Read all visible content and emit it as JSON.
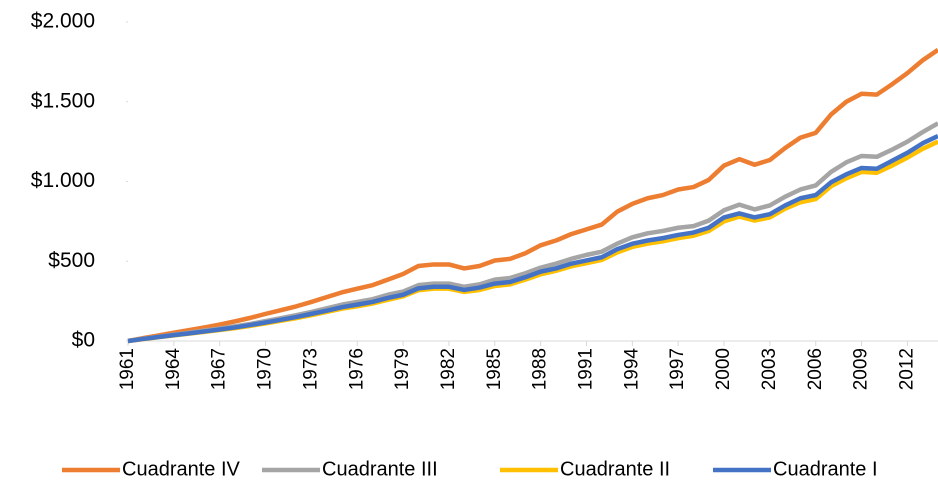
{
  "chart_data": {
    "type": "line",
    "x": [
      1961,
      1962,
      1963,
      1964,
      1965,
      1966,
      1967,
      1968,
      1969,
      1970,
      1971,
      1972,
      1973,
      1974,
      1975,
      1976,
      1977,
      1978,
      1979,
      1980,
      1981,
      1982,
      1983,
      1984,
      1985,
      1986,
      1987,
      1988,
      1989,
      1990,
      1991,
      1992,
      1993,
      1994,
      1995,
      1996,
      1997,
      1998,
      1999,
      2000,
      2001,
      2002,
      2003,
      2004,
      2005,
      2006,
      2007,
      2008,
      2009,
      2010,
      2011,
      2012,
      2013,
      2014
    ],
    "xlim": [
      1961,
      2014
    ],
    "xticks": [
      1961,
      1964,
      1967,
      1970,
      1973,
      1976,
      1979,
      1982,
      1985,
      1988,
      1991,
      1994,
      1997,
      2000,
      2003,
      2006,
      2009,
      2012
    ],
    "ylim": [
      0,
      2000
    ],
    "yticks": [
      {
        "value": 0,
        "label": "$0"
      },
      {
        "value": 500,
        "label": "$500"
      },
      {
        "value": 1000,
        "label": "$1.000"
      },
      {
        "value": 1500,
        "label": "$1.500"
      },
      {
        "value": 2000,
        "label": "$2.000"
      }
    ],
    "legend": "bottom",
    "series": [
      {
        "name": "Cuadrante IV",
        "color": "#ed7d31",
        "values": [
          0,
          18,
          35,
          52,
          68,
          85,
          103,
          123,
          145,
          170,
          193,
          217,
          245,
          275,
          305,
          328,
          350,
          385,
          420,
          470,
          480,
          480,
          455,
          470,
          505,
          515,
          550,
          600,
          630,
          670,
          700,
          730,
          810,
          860,
          895,
          915,
          950,
          965,
          1010,
          1100,
          1140,
          1105,
          1135,
          1210,
          1275,
          1305,
          1420,
          1500,
          1550,
          1545,
          1610,
          1680,
          1760,
          1825
        ]
      },
      {
        "name": "Cuadrante III",
        "color": "#a5a5a5",
        "values": [
          0,
          14,
          27,
          40,
          52,
          65,
          78,
          92,
          107,
          125,
          143,
          162,
          182,
          205,
          228,
          245,
          262,
          290,
          310,
          350,
          360,
          360,
          340,
          355,
          385,
          395,
          425,
          460,
          485,
          515,
          540,
          560,
          610,
          650,
          675,
          690,
          710,
          720,
          755,
          820,
          855,
          825,
          850,
          905,
          950,
          975,
          1060,
          1120,
          1160,
          1155,
          1200,
          1250,
          1310,
          1365
        ]
      },
      {
        "name": "Cuadrante II",
        "color": "#ffc000",
        "values": [
          0,
          12,
          24,
          35,
          46,
          57,
          69,
          81,
          95,
          110,
          127,
          143,
          162,
          182,
          203,
          218,
          235,
          258,
          280,
          318,
          328,
          328,
          308,
          320,
          345,
          355,
          385,
          418,
          440,
          468,
          488,
          508,
          555,
          590,
          610,
          625,
          645,
          660,
          690,
          750,
          780,
          755,
          775,
          830,
          870,
          890,
          970,
          1020,
          1060,
          1055,
          1100,
          1150,
          1205,
          1250
        ]
      },
      {
        "name": "Cuadrante I",
        "color": "#4472c4",
        "values": [
          0,
          13,
          25,
          37,
          48,
          60,
          72,
          85,
          100,
          116,
          133,
          150,
          170,
          190,
          212,
          228,
          245,
          270,
          290,
          330,
          340,
          340,
          320,
          335,
          360,
          370,
          400,
          435,
          455,
          485,
          505,
          525,
          575,
          610,
          630,
          645,
          665,
          680,
          710,
          775,
          800,
          775,
          795,
          850,
          895,
          915,
          995,
          1045,
          1085,
          1080,
          1130,
          1180,
          1240,
          1285
        ]
      }
    ]
  }
}
